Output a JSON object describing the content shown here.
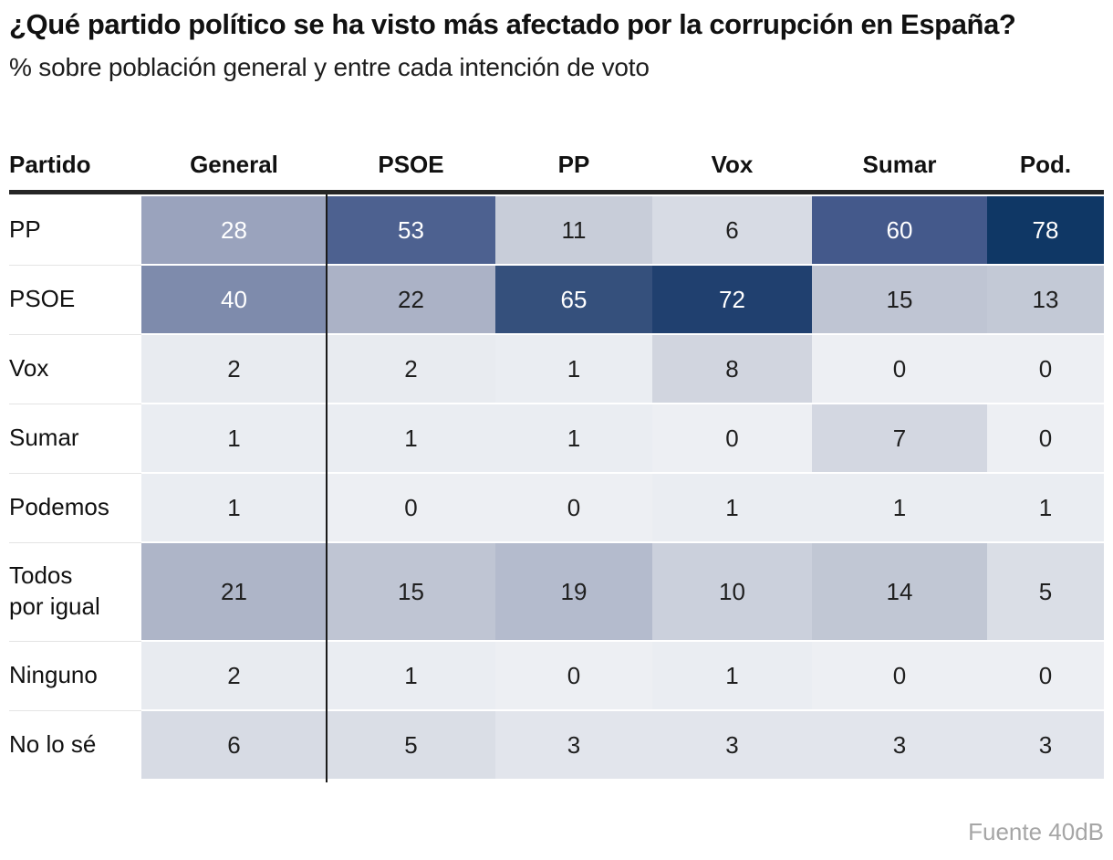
{
  "chart_data": {
    "type": "heatmap",
    "title": "¿Qué partido político se ha visto más afectado por la corrupción en España?",
    "subtitle": "% sobre población general y entre cada intención de voto",
    "source": "Fuente 40dB",
    "row_header": "Partido",
    "columns": [
      "General",
      "PSOE",
      "PP",
      "Vox",
      "Sumar",
      "Pod."
    ],
    "rows": [
      {
        "label": "PP",
        "values": [
          28,
          53,
          11,
          6,
          60,
          78
        ]
      },
      {
        "label": "PSOE",
        "values": [
          40,
          22,
          65,
          72,
          15,
          13
        ]
      },
      {
        "label": "Vox",
        "values": [
          2,
          2,
          1,
          8,
          0,
          0
        ]
      },
      {
        "label": "Sumar",
        "values": [
          1,
          1,
          1,
          0,
          7,
          0
        ]
      },
      {
        "label": "Podemos",
        "values": [
          1,
          0,
          0,
          1,
          1,
          1
        ]
      },
      {
        "label": "Todos\npor igual",
        "values": [
          21,
          15,
          19,
          10,
          14,
          5
        ]
      },
      {
        "label": "Ninguno",
        "values": [
          2,
          1,
          0,
          1,
          0,
          0
        ]
      },
      {
        "label": "No lo sé",
        "values": [
          6,
          5,
          3,
          3,
          3,
          3
        ]
      }
    ],
    "value_unit": "%",
    "colors": {
      "value_background": {
        "0": "#edeff3",
        "1": "#eaedf2",
        "2": "#e8ebf0",
        "3": "#e2e5ec",
        "5": "#dadee6",
        "6": "#d7dbe4",
        "7": "#d3d7e1",
        "8": "#d1d5df",
        "10": "#cbd0dc",
        "11": "#c8cdd9",
        "13": "#c3c9d6",
        "14": "#c1c7d4",
        "15": "#bfc5d3",
        "19": "#b4bbcd",
        "21": "#aeb5c8",
        "22": "#abb2c6",
        "28": "#9aa3bd",
        "40": "#7e8bac",
        "53": "#4d6190",
        "60": "#44598b",
        "65": "#35507c",
        "72": "#20406f",
        "78": "#0f3765"
      },
      "light_text_min_value": 28,
      "dark_text": "#1f1f1f",
      "light_text": "#ffffff",
      "header_rule": "#262626",
      "divider_line": "#1a1a1a",
      "row_separator": "#e4e4e4",
      "source_text": "#a6a6a6"
    }
  }
}
